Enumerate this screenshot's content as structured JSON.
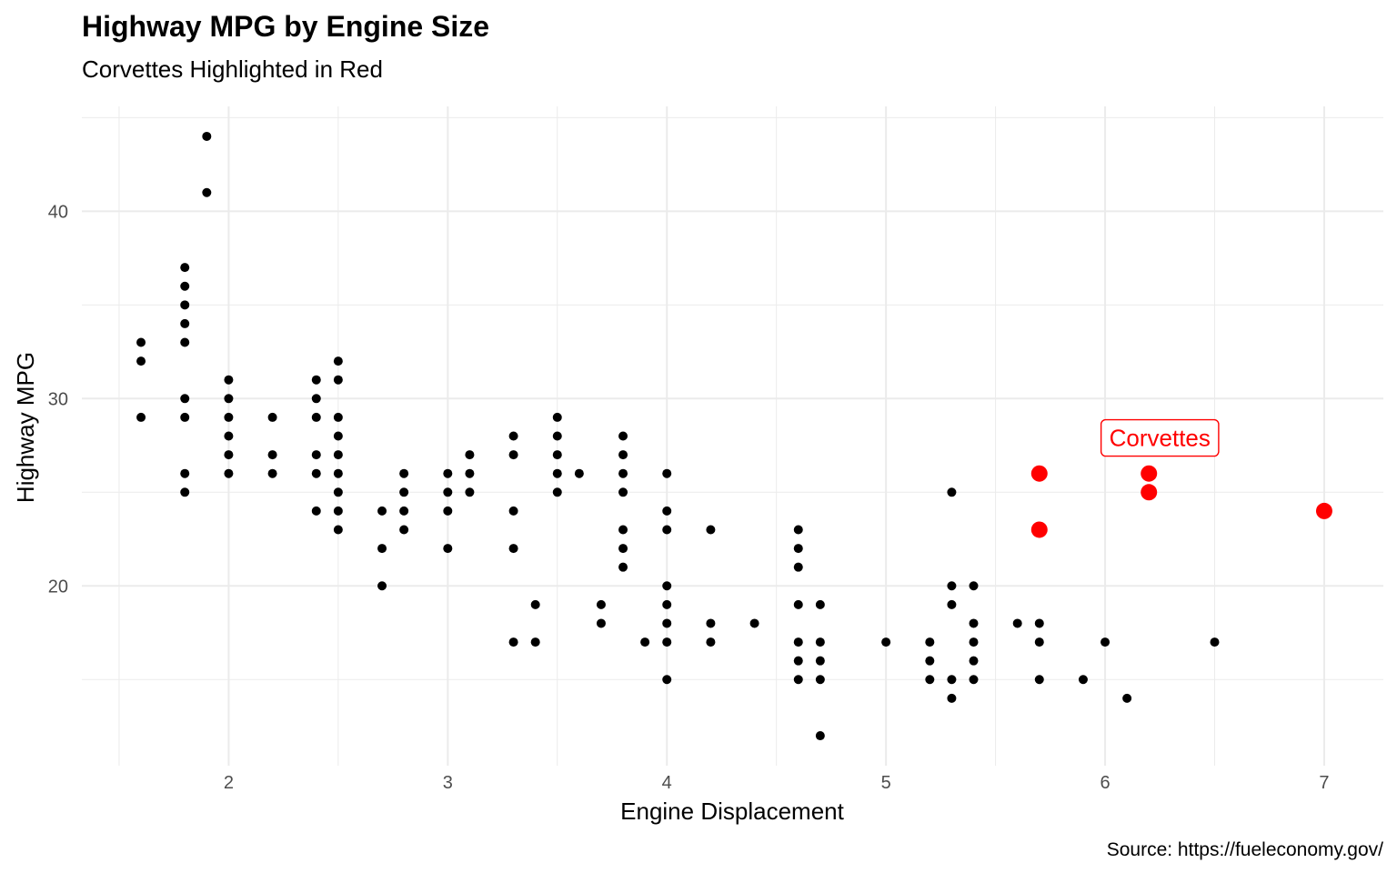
{
  "chart_data": {
    "type": "scatter",
    "title": "Highway MPG by Engine Size",
    "subtitle": "Corvettes Highlighted in Red",
    "xlabel": "Engine Displacement",
    "ylabel": "Highway MPG",
    "caption": "Source: https://fueleconomy.gov/",
    "xlim": [
      1.33,
      7.27
    ],
    "ylim": [
      10.4,
      45.6
    ],
    "x_ticks": [
      2,
      3,
      4,
      5,
      6,
      7
    ],
    "y_ticks": [
      20,
      30,
      40
    ],
    "x_tick_labels": [
      "2",
      "3",
      "4",
      "5",
      "6",
      "7"
    ],
    "y_tick_labels": [
      "20",
      "30",
      "40"
    ],
    "grid": true,
    "legend": "none",
    "colors": {
      "points": "#000000",
      "highlight": "#ff0000",
      "grid": "#ebebeb",
      "tick_text": "#4d4d4d"
    },
    "series": [
      {
        "color": "#000000",
        "points": [
          [
            1.6,
            33
          ],
          [
            1.6,
            32
          ],
          [
            1.6,
            29
          ],
          [
            1.8,
            37
          ],
          [
            1.8,
            36
          ],
          [
            1.8,
            35
          ],
          [
            1.8,
            34
          ],
          [
            1.8,
            33
          ],
          [
            1.8,
            30
          ],
          [
            1.8,
            29
          ],
          [
            1.8,
            26
          ],
          [
            1.8,
            25
          ],
          [
            1.9,
            44
          ],
          [
            1.9,
            41
          ],
          [
            2.0,
            31
          ],
          [
            2.0,
            30
          ],
          [
            2.0,
            29
          ],
          [
            2.0,
            28
          ],
          [
            2.0,
            27
          ],
          [
            2.0,
            26
          ],
          [
            2.2,
            29
          ],
          [
            2.2,
            27
          ],
          [
            2.2,
            26
          ],
          [
            2.4,
            31
          ],
          [
            2.4,
            30
          ],
          [
            2.4,
            29
          ],
          [
            2.4,
            27
          ],
          [
            2.4,
            26
          ],
          [
            2.4,
            24
          ],
          [
            2.5,
            32
          ],
          [
            2.5,
            31
          ],
          [
            2.5,
            29
          ],
          [
            2.5,
            28
          ],
          [
            2.5,
            27
          ],
          [
            2.5,
            26
          ],
          [
            2.5,
            25
          ],
          [
            2.5,
            24
          ],
          [
            2.5,
            23
          ],
          [
            2.7,
            24
          ],
          [
            2.7,
            22
          ],
          [
            2.7,
            20
          ],
          [
            2.8,
            26
          ],
          [
            2.8,
            25
          ],
          [
            2.8,
            24
          ],
          [
            2.8,
            23
          ],
          [
            3.0,
            26
          ],
          [
            3.0,
            25
          ],
          [
            3.0,
            24
          ],
          [
            3.0,
            22
          ],
          [
            3.1,
            27
          ],
          [
            3.1,
            26
          ],
          [
            3.1,
            25
          ],
          [
            3.3,
            28
          ],
          [
            3.3,
            27
          ],
          [
            3.3,
            24
          ],
          [
            3.3,
            22
          ],
          [
            3.3,
            17
          ],
          [
            3.4,
            19
          ],
          [
            3.4,
            17
          ],
          [
            3.5,
            29
          ],
          [
            3.5,
            28
          ],
          [
            3.5,
            27
          ],
          [
            3.5,
            26
          ],
          [
            3.5,
            25
          ],
          [
            3.6,
            26
          ],
          [
            3.7,
            19
          ],
          [
            3.7,
            18
          ],
          [
            3.8,
            28
          ],
          [
            3.8,
            27
          ],
          [
            3.8,
            26
          ],
          [
            3.8,
            25
          ],
          [
            3.8,
            23
          ],
          [
            3.8,
            22
          ],
          [
            3.8,
            21
          ],
          [
            3.9,
            17
          ],
          [
            4.0,
            26
          ],
          [
            4.0,
            24
          ],
          [
            4.0,
            23
          ],
          [
            4.0,
            20
          ],
          [
            4.0,
            19
          ],
          [
            4.0,
            18
          ],
          [
            4.0,
            17
          ],
          [
            4.0,
            15
          ],
          [
            4.2,
            23
          ],
          [
            4.2,
            18
          ],
          [
            4.2,
            17
          ],
          [
            4.4,
            18
          ],
          [
            4.6,
            23
          ],
          [
            4.6,
            22
          ],
          [
            4.6,
            21
          ],
          [
            4.6,
            19
          ],
          [
            4.6,
            17
          ],
          [
            4.6,
            16
          ],
          [
            4.6,
            15
          ],
          [
            4.7,
            19
          ],
          [
            4.7,
            17
          ],
          [
            4.7,
            16
          ],
          [
            4.7,
            15
          ],
          [
            4.7,
            12
          ],
          [
            5.0,
            17
          ],
          [
            5.2,
            17
          ],
          [
            5.2,
            16
          ],
          [
            5.2,
            15
          ],
          [
            5.3,
            25
          ],
          [
            5.3,
            20
          ],
          [
            5.3,
            19
          ],
          [
            5.3,
            15
          ],
          [
            5.3,
            14
          ],
          [
            5.4,
            20
          ],
          [
            5.4,
            18
          ],
          [
            5.4,
            17
          ],
          [
            5.4,
            16
          ],
          [
            5.4,
            15
          ],
          [
            5.6,
            18
          ],
          [
            5.7,
            18
          ],
          [
            5.7,
            17
          ],
          [
            5.7,
            15
          ],
          [
            5.9,
            15
          ],
          [
            6.0,
            17
          ],
          [
            6.1,
            14
          ],
          [
            6.5,
            17
          ]
        ]
      },
      {
        "color": "#ff0000",
        "points": [
          [
            5.7,
            26
          ],
          [
            5.7,
            23
          ],
          [
            6.2,
            26
          ],
          [
            6.2,
            25
          ],
          [
            7.0,
            24
          ]
        ]
      }
    ],
    "annotation": {
      "text": "Corvettes",
      "x": 6.25,
      "y": 27.9,
      "color": "#ff0000"
    }
  }
}
